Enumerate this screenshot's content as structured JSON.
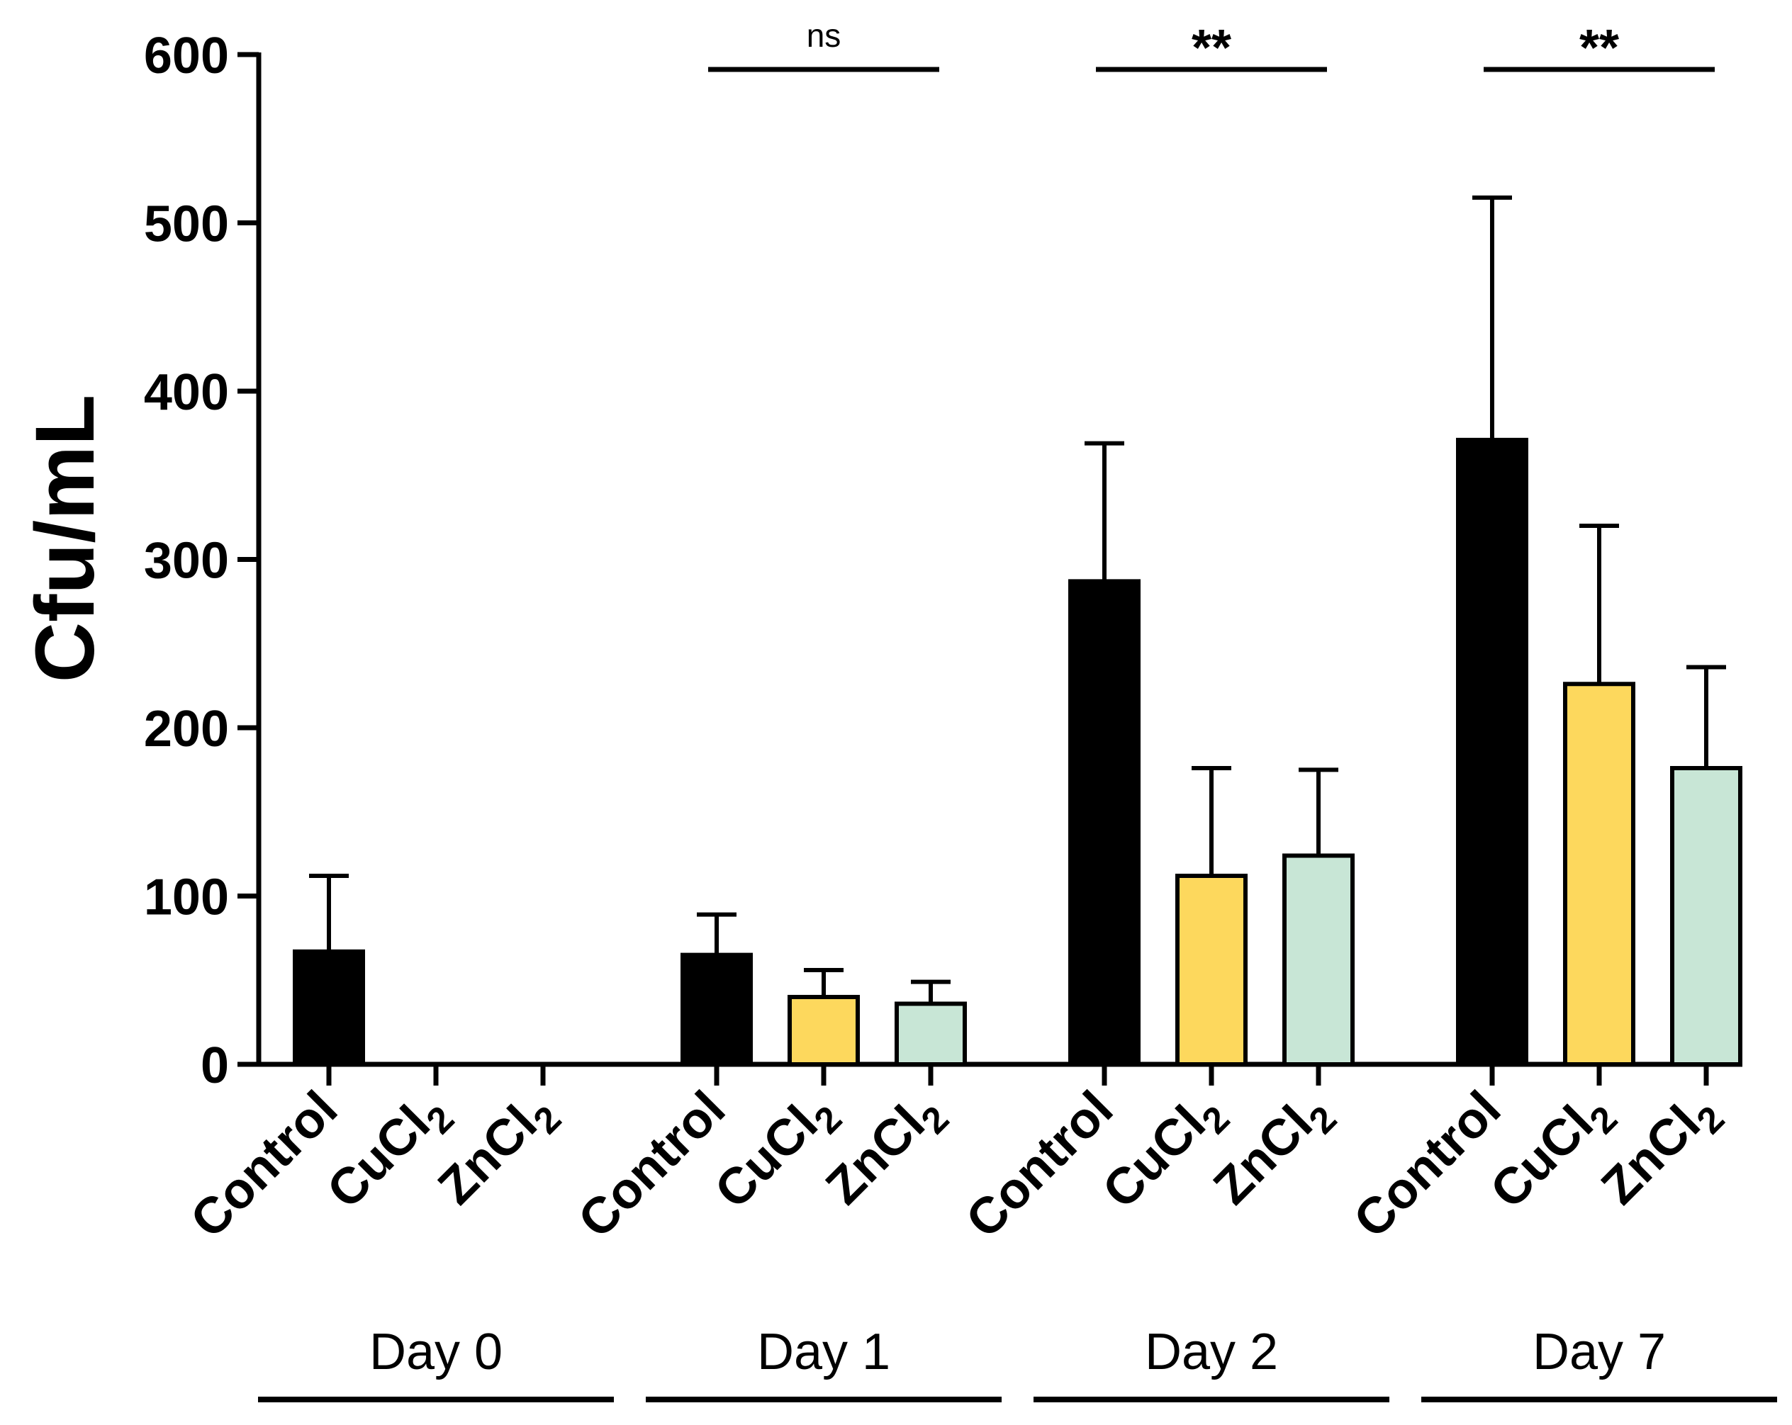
{
  "chart_data": {
    "type": "bar",
    "ylabel": "Cfu/mL",
    "ylim": [
      0,
      600
    ],
    "yticks": [
      "0",
      "100",
      "200",
      "300",
      "400",
      "500",
      "600"
    ],
    "colors": {
      "Control": "#000000",
      "CuCl2": "#fdd85d",
      "ZnCl2": "#c8e6d6",
      "stroke": "#000000"
    },
    "groups": [
      {
        "name": "Day 0",
        "significance": "",
        "bars": [
          {
            "label": "Control",
            "sub": "",
            "series": "Control",
            "value": 67,
            "error": 45
          },
          {
            "label": "CuCl",
            "sub": "2",
            "series": "CuCl2",
            "value": 0,
            "error": 0
          },
          {
            "label": "ZnCl",
            "sub": "2",
            "series": "ZnCl2",
            "value": 0,
            "error": 0
          }
        ]
      },
      {
        "name": "Day 1",
        "significance": "ns",
        "bars": [
          {
            "label": "Control",
            "sub": "",
            "series": "Control",
            "value": 65,
            "error": 24
          },
          {
            "label": "CuCl",
            "sub": "2",
            "series": "CuCl2",
            "value": 40,
            "error": 16
          },
          {
            "label": "ZnCl",
            "sub": "2",
            "series": "ZnCl2",
            "value": 36,
            "error": 13
          }
        ]
      },
      {
        "name": "Day 2",
        "significance": "**",
        "bars": [
          {
            "label": "Control",
            "sub": "",
            "series": "Control",
            "value": 287,
            "error": 82
          },
          {
            "label": "CuCl",
            "sub": "2",
            "series": "CuCl2",
            "value": 112,
            "error": 64
          },
          {
            "label": "ZnCl",
            "sub": "2",
            "series": "ZnCl2",
            "value": 124,
            "error": 51
          }
        ]
      },
      {
        "name": "Day 7",
        "significance": "**",
        "bars": [
          {
            "label": "Control",
            "sub": "",
            "series": "Control",
            "value": 371,
            "error": 144
          },
          {
            "label": "CuCl",
            "sub": "2",
            "series": "CuCl2",
            "value": 226,
            "error": 94
          },
          {
            "label": "ZnCl",
            "sub": "2",
            "series": "ZnCl2",
            "value": 176,
            "error": 60
          }
        ]
      }
    ]
  }
}
